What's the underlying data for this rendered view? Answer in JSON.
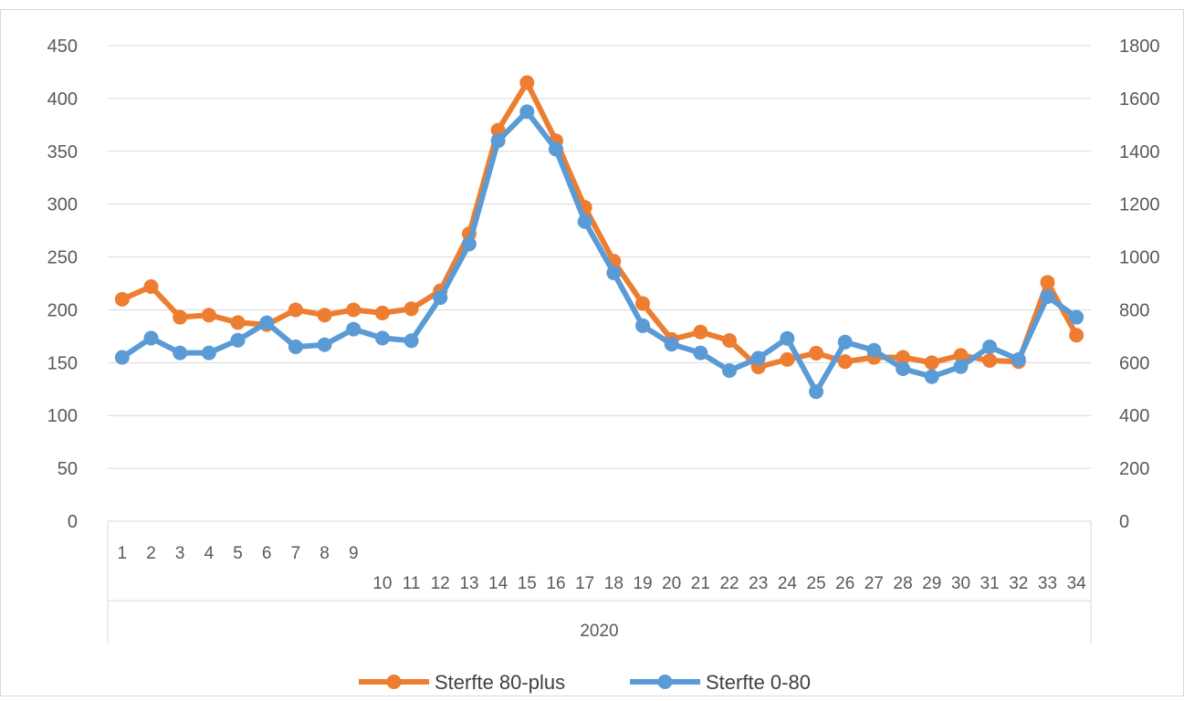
{
  "chart_data": {
    "type": "line",
    "xlabel": "",
    "ylabel": "",
    "x_group_label": "2020",
    "categories": [
      "1",
      "2",
      "3",
      "4",
      "5",
      "6",
      "7",
      "8",
      "9",
      "10",
      "11",
      "12",
      "13",
      "14",
      "15",
      "16",
      "17",
      "18",
      "19",
      "20",
      "21",
      "22",
      "23",
      "24",
      "25",
      "26",
      "27",
      "28",
      "29",
      "30",
      "31",
      "32",
      "33",
      "34"
    ],
    "y_left": {
      "range": [
        0,
        450
      ],
      "ticks": [
        0,
        50,
        100,
        150,
        200,
        250,
        300,
        350,
        400,
        450
      ]
    },
    "y_right": {
      "range": [
        0,
        1800
      ],
      "ticks": [
        0,
        200,
        400,
        600,
        800,
        1000,
        1200,
        1400,
        1600,
        1800
      ]
    },
    "grid": true,
    "legend_position": "bottom",
    "series": [
      {
        "name": "Sterfte 80-plus",
        "axis": "left",
        "color": "#ED7D31",
        "values": [
          210,
          222,
          193,
          195,
          188,
          186,
          200,
          195,
          200,
          197,
          201,
          218,
          272,
          370,
          415,
          360,
          297,
          246,
          206,
          172,
          179,
          171,
          146,
          153,
          159,
          151,
          155,
          155,
          150,
          157,
          152,
          151,
          226,
          176
        ]
      },
      {
        "name": "Sterfte 0-80",
        "axis": "right",
        "color": "#5B9BD5",
        "values": [
          620,
          693,
          637,
          637,
          685,
          751,
          660,
          668,
          727,
          693,
          683,
          846,
          1049,
          1440,
          1550,
          1408,
          1134,
          940,
          740,
          670,
          637,
          570,
          617,
          692,
          490,
          678,
          647,
          577,
          547,
          585,
          660,
          612,
          850,
          772
        ]
      }
    ]
  }
}
